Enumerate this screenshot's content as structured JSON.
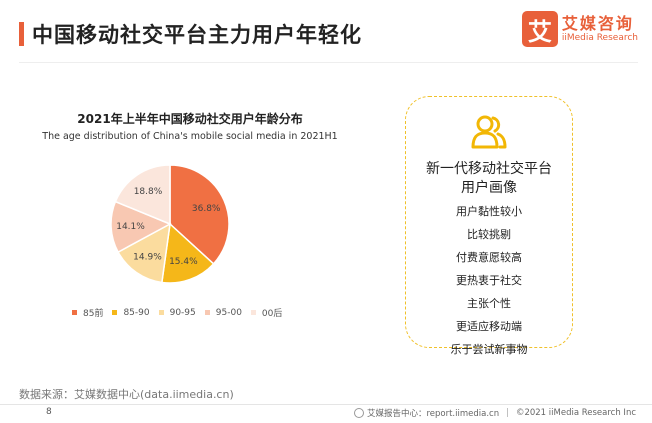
{
  "header": {
    "title": "中国移动社交平台主力用户年轻化",
    "logo_mark": "艾",
    "logo_cn": "艾媒咨询",
    "logo_en": "iiMedia Research"
  },
  "chart_data": {
    "type": "pie",
    "title": "2021年上半年中国移动社交用户年龄分布",
    "subtitle": "The age distribution of China's mobile social media in 2021H1",
    "unit": "%",
    "legend_position": "bottom",
    "slices": [
      {
        "label": "85前",
        "value": 36.8,
        "display": "36.8%",
        "color": "#f07043"
      },
      {
        "label": "85-90",
        "value": 15.4,
        "display": "15.4%",
        "color": "#f5b719"
      },
      {
        "label": "90-95",
        "value": 14.9,
        "display": "14.9%",
        "color": "#fbdc9e"
      },
      {
        "label": "95-00",
        "value": 14.1,
        "display": "14.1%",
        "color": "#f8c8b2"
      },
      {
        "label": "00后",
        "value": 18.8,
        "display": "18.8%",
        "color": "#fbe6dc"
      }
    ]
  },
  "portrait": {
    "icon": "users-icon",
    "title_line1": "新一代移动社交平台",
    "title_line2": "用户画像",
    "items": [
      "用户黏性较小",
      "比较挑剔",
      "付费意愿较高",
      "更热衷于社交",
      "主张个性",
      "更适应移动端",
      "乐于尝试新事物"
    ]
  },
  "footer": {
    "source": "数据来源：艾媒数据中心(data.iimedia.cn)",
    "page_number": "8",
    "report_center": "艾媒报告中心：report.iimedia.cn",
    "copyright": "©2021  iiMedia Research  Inc"
  },
  "colors": {
    "accent": "#e8603a",
    "box_border": "#f0c12a",
    "icon_yellow": "#f2b705"
  }
}
